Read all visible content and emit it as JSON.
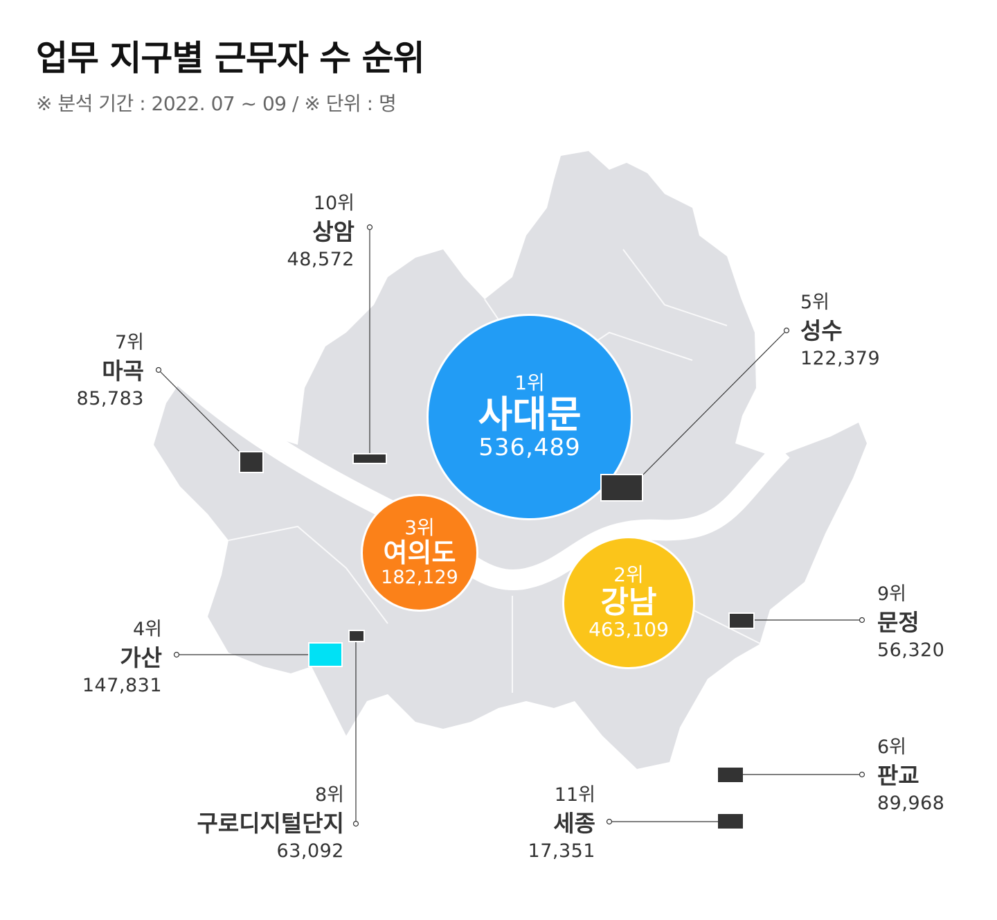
{
  "title": "업무 지구별 근무자 수 순위",
  "subtitle": "※ 분석 기간 : 2022. 07 ~ 09 / ※ 단위 : 명",
  "colors": {
    "map": "#dfe0e4",
    "rank1": "#229cf5",
    "rank2": "#fbc51a",
    "rank3": "#fb8119",
    "highlight": "#00e1f5",
    "marker": "#333333"
  },
  "districts": [
    {
      "rank": "1위",
      "name": "사대문",
      "value": "536,489"
    },
    {
      "rank": "2위",
      "name": "강남",
      "value": "463,109"
    },
    {
      "rank": "3위",
      "name": "여의도",
      "value": "182,129"
    },
    {
      "rank": "4위",
      "name": "가산",
      "value": "147,831"
    },
    {
      "rank": "5위",
      "name": "성수",
      "value": "122,379"
    },
    {
      "rank": "6위",
      "name": "판교",
      "value": "89,968"
    },
    {
      "rank": "7위",
      "name": "마곡",
      "value": "85,783"
    },
    {
      "rank": "8위",
      "name": "구로디지털단지",
      "value": "63,092"
    },
    {
      "rank": "9위",
      "name": "문정",
      "value": "56,320"
    },
    {
      "rank": "10위",
      "name": "상암",
      "value": "48,572"
    },
    {
      "rank": "11위",
      "name": "세종",
      "value": "17,351"
    }
  ]
}
